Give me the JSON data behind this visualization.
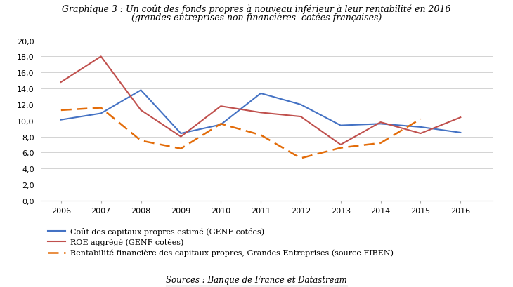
{
  "title_line1": "Graphique 3 : Un coût des fonds propres à nouveau inférieur à leur rentabilité en 2016",
  "title_line2": "(grandes entreprises non-financières  cotées françaises)",
  "years": [
    2006,
    2007,
    2008,
    2009,
    2010,
    2011,
    2012,
    2013,
    2014,
    2015,
    2016
  ],
  "cout_capitaux": [
    10.1,
    10.9,
    13.8,
    8.4,
    9.5,
    13.4,
    12.0,
    9.4,
    9.6,
    9.2,
    8.5
  ],
  "roe_agrege": [
    14.8,
    18.0,
    11.3,
    8.0,
    11.8,
    11.0,
    10.5,
    7.0,
    9.8,
    8.4,
    10.4
  ],
  "rentabilite": [
    11.3,
    11.6,
    7.5,
    6.5,
    9.6,
    8.2,
    5.3,
    6.6,
    7.2,
    10.2,
    null
  ],
  "cout_color": "#4472C4",
  "roe_color": "#C0504D",
  "rent_color": "#E36C09",
  "ylim": [
    0,
    20.0
  ],
  "source_text": "Sources : Banque de France et Datastream",
  "legend1": "Coût des capitaux propres estimé (GENF cotées)",
  "legend2": "ROE aggrégé (GENF cotées)",
  "legend3": "Rentabilité financière des capitaux propres, Grandes Entreprises (source FIBEN)"
}
